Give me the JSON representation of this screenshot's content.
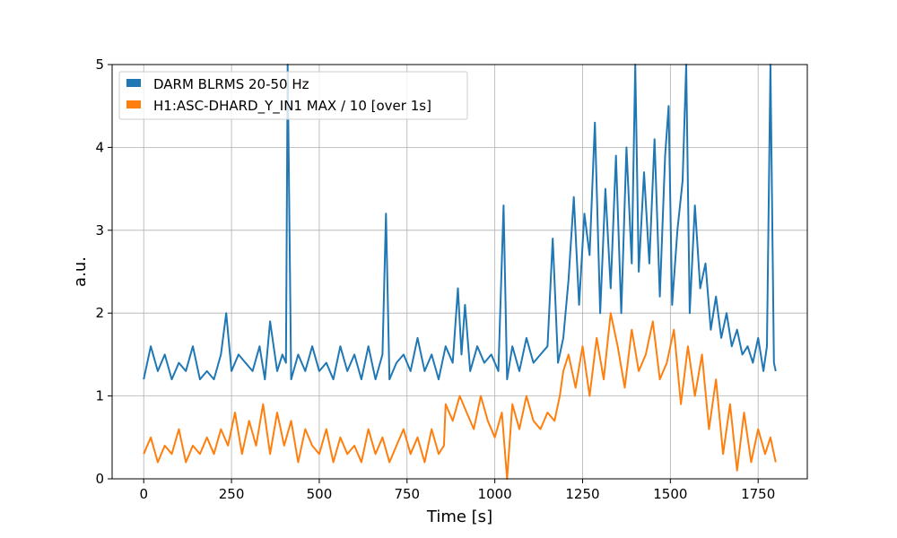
{
  "chart_data": {
    "type": "line",
    "xlabel": "Time [s]",
    "ylabel": "a.u.",
    "xlim": [
      -90,
      1890
    ],
    "ylim": [
      0,
      5
    ],
    "x_ticks": [
      0,
      250,
      500,
      750,
      1000,
      1250,
      1500,
      1750
    ],
    "y_ticks": [
      0,
      1,
      2,
      3,
      4,
      5
    ],
    "grid": true,
    "legend_position": "top-left",
    "series": [
      {
        "name": "DARM BLRMS 20-50 Hz",
        "color": "#1f77b4",
        "x": [
          0,
          20,
          40,
          60,
          80,
          100,
          120,
          140,
          160,
          180,
          200,
          220,
          235,
          250,
          270,
          290,
          310,
          330,
          345,
          360,
          380,
          395,
          405,
          410,
          420,
          440,
          460,
          480,
          500,
          520,
          540,
          560,
          580,
          600,
          620,
          640,
          660,
          680,
          690,
          700,
          720,
          740,
          760,
          780,
          800,
          820,
          840,
          860,
          880,
          895,
          905,
          915,
          930,
          950,
          970,
          990,
          1010,
          1025,
          1035,
          1050,
          1070,
          1090,
          1110,
          1130,
          1150,
          1165,
          1180,
          1195,
          1210,
          1225,
          1240,
          1255,
          1270,
          1285,
          1300,
          1315,
          1330,
          1345,
          1360,
          1375,
          1390,
          1400,
          1410,
          1425,
          1440,
          1455,
          1470,
          1485,
          1495,
          1505,
          1520,
          1535,
          1545,
          1555,
          1570,
          1585,
          1600,
          1615,
          1630,
          1645,
          1660,
          1675,
          1690,
          1705,
          1720,
          1735,
          1750,
          1765,
          1775,
          1785,
          1795,
          1800
        ],
        "y": [
          1.2,
          1.6,
          1.3,
          1.5,
          1.2,
          1.4,
          1.3,
          1.6,
          1.2,
          1.3,
          1.2,
          1.5,
          2.0,
          1.3,
          1.5,
          1.4,
          1.3,
          1.6,
          1.2,
          1.9,
          1.3,
          1.5,
          1.4,
          5.0,
          1.2,
          1.5,
          1.3,
          1.6,
          1.3,
          1.4,
          1.2,
          1.6,
          1.3,
          1.5,
          1.2,
          1.6,
          1.2,
          1.5,
          3.2,
          1.2,
          1.4,
          1.5,
          1.3,
          1.7,
          1.3,
          1.5,
          1.2,
          1.6,
          1.4,
          2.3,
          1.5,
          2.1,
          1.3,
          1.6,
          1.4,
          1.5,
          1.3,
          3.3,
          1.2,
          1.6,
          1.3,
          1.7,
          1.4,
          1.5,
          1.6,
          2.9,
          1.4,
          1.7,
          2.4,
          3.4,
          2.1,
          3.2,
          2.7,
          4.3,
          2.0,
          3.5,
          2.3,
          3.9,
          2.0,
          4.0,
          2.6,
          5.0,
          2.5,
          3.7,
          2.6,
          4.1,
          2.2,
          3.9,
          4.5,
          2.1,
          3.0,
          3.6,
          5.0,
          2.0,
          3.3,
          2.3,
          2.6,
          1.8,
          2.2,
          1.7,
          2.0,
          1.6,
          1.8,
          1.5,
          1.6,
          1.4,
          1.7,
          1.3,
          1.6,
          5.0,
          1.4,
          1.3
        ]
      },
      {
        "name": "H1:ASC-DHARD_Y_IN1 MAX / 10 [over 1s]",
        "color": "#ff7f0e",
        "x": [
          0,
          20,
          40,
          60,
          80,
          100,
          120,
          140,
          160,
          180,
          200,
          220,
          240,
          260,
          280,
          300,
          320,
          340,
          360,
          380,
          400,
          420,
          440,
          460,
          480,
          500,
          520,
          540,
          560,
          580,
          600,
          620,
          640,
          660,
          680,
          700,
          720,
          740,
          760,
          780,
          800,
          820,
          840,
          855,
          860,
          880,
          900,
          920,
          940,
          960,
          980,
          1000,
          1020,
          1035,
          1050,
          1070,
          1090,
          1110,
          1130,
          1150,
          1170,
          1185,
          1195,
          1210,
          1230,
          1250,
          1270,
          1290,
          1310,
          1330,
          1350,
          1370,
          1390,
          1410,
          1430,
          1450,
          1470,
          1490,
          1510,
          1530,
          1550,
          1570,
          1590,
          1610,
          1630,
          1650,
          1670,
          1690,
          1710,
          1730,
          1750,
          1770,
          1785,
          1800
        ],
        "y": [
          0.3,
          0.5,
          0.2,
          0.4,
          0.3,
          0.6,
          0.2,
          0.4,
          0.3,
          0.5,
          0.3,
          0.6,
          0.4,
          0.8,
          0.3,
          0.7,
          0.4,
          0.9,
          0.3,
          0.8,
          0.4,
          0.7,
          0.2,
          0.6,
          0.4,
          0.3,
          0.6,
          0.2,
          0.5,
          0.3,
          0.4,
          0.2,
          0.6,
          0.3,
          0.5,
          0.2,
          0.4,
          0.6,
          0.3,
          0.5,
          0.2,
          0.6,
          0.3,
          0.4,
          0.9,
          0.7,
          1.0,
          0.8,
          0.6,
          1.0,
          0.7,
          0.5,
          0.8,
          0.0,
          0.9,
          0.6,
          1.0,
          0.7,
          0.6,
          0.8,
          0.7,
          1.0,
          1.3,
          1.5,
          1.1,
          1.6,
          1.0,
          1.7,
          1.2,
          2.0,
          1.6,
          1.1,
          1.8,
          1.3,
          1.5,
          1.9,
          1.2,
          1.4,
          1.8,
          0.9,
          1.6,
          1.0,
          1.5,
          0.6,
          1.2,
          0.3,
          0.9,
          0.1,
          0.8,
          0.2,
          0.6,
          0.3,
          0.5,
          0.2
        ]
      }
    ]
  }
}
